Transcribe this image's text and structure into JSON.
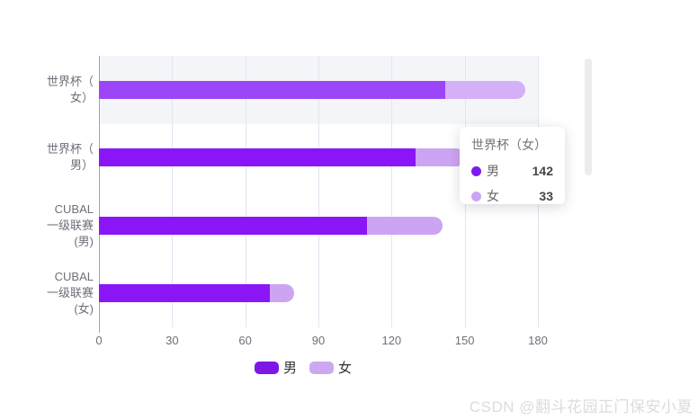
{
  "chart_data": {
    "type": "bar",
    "orientation": "horizontal",
    "stacked": true,
    "grid": true,
    "legend_position": "bottom",
    "categories": [
      "世界杯（女）",
      "世界杯（男）",
      "CUBAL一级联赛(男)",
      "CUBAL一级联赛(女)"
    ],
    "category_label_lines": [
      [
        "世界杯（",
        "女）"
      ],
      [
        "世界杯（",
        "男）"
      ],
      [
        "CUBAL",
        "一级联赛",
        "(男)"
      ],
      [
        "CUBAL",
        "一级联赛",
        "(女)"
      ]
    ],
    "series": [
      {
        "name": "男",
        "color": "#8a16f8",
        "highlight_color": "#9c45f8",
        "values": [
          142,
          130,
          110,
          70
        ]
      },
      {
        "name": "女",
        "color": "#cda4f3",
        "highlight_color": "#d5aff8",
        "values": [
          33,
          20,
          31,
          10
        ]
      }
    ],
    "x_ticks": [
      0,
      30,
      60,
      90,
      120,
      150,
      180
    ],
    "xlim": [
      0,
      180
    ],
    "xlabel": "",
    "ylabel": "",
    "highlighted_category_index": 0
  },
  "tooltip": {
    "title": "世界杯（女）",
    "rows": [
      {
        "label": "男",
        "value": "142",
        "color": "#7d1bef"
      },
      {
        "label": "女",
        "value": "33",
        "color": "#cda4f3"
      }
    ]
  },
  "legend": {
    "items": [
      {
        "label": "男",
        "color": "#7d17e8"
      },
      {
        "label": "女",
        "color": "#cda8f2"
      }
    ]
  },
  "watermark": "CSDN @翻斗花园正门保安小夏",
  "colors": {
    "highlight_band": "#f4f5f9",
    "gridline": "#e0e6f1",
    "axis_line": "#a0a4ab",
    "axis_text": "#6e7079",
    "tooltip_title_text": "#757575",
    "tooltip_value_text": "#464646"
  }
}
